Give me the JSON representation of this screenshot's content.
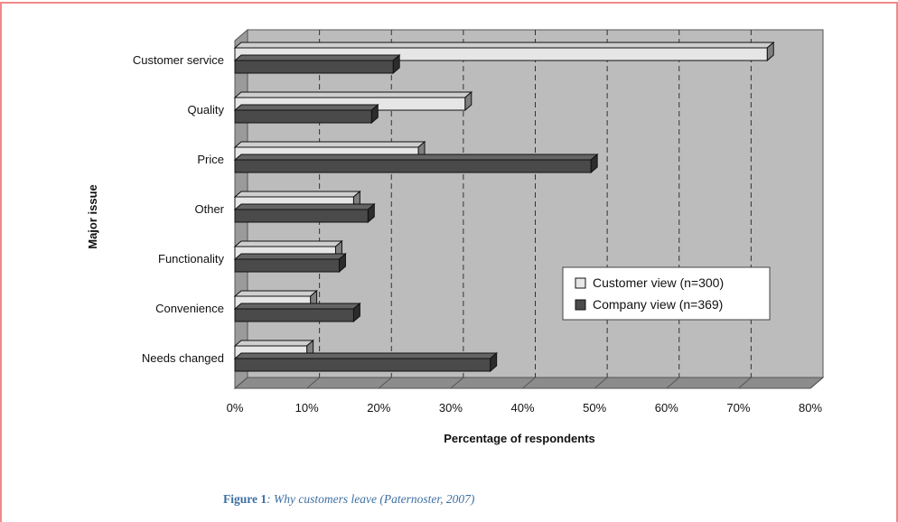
{
  "colors": {
    "border": "#f08a8a",
    "plot_bg": "#bcbcbc",
    "customer_fill": "#e6e6e6",
    "company_fill": "#4a4a4a",
    "caption": "#3d6fa3"
  },
  "caption": {
    "label": "Figure 1",
    "text": ": Why customers leave (Paternoster, 2007)"
  },
  "chart_data": {
    "type": "bar",
    "orientation": "horizontal",
    "title": "",
    "xlabel": "Percentage of respondents",
    "ylabel": "Major issue",
    "xlim": [
      0,
      80
    ],
    "x_ticks": [
      "0%",
      "10%",
      "20%",
      "30%",
      "40%",
      "50%",
      "60%",
      "70%",
      "80%"
    ],
    "grid": "vertical dashed",
    "legend_position": "right",
    "categories": [
      "Customer service",
      "Quality",
      "Price",
      "Other",
      "Functionality",
      "Convenience",
      "Needs changed"
    ],
    "series": [
      {
        "name": "Customer view (n=300)",
        "values": [
          74,
          32,
          25.5,
          16.5,
          14,
          10.5,
          10
        ]
      },
      {
        "name": "Company view (n=369)",
        "values": [
          22,
          19,
          49.5,
          18.5,
          14.5,
          16.5,
          35.5
        ]
      }
    ]
  }
}
